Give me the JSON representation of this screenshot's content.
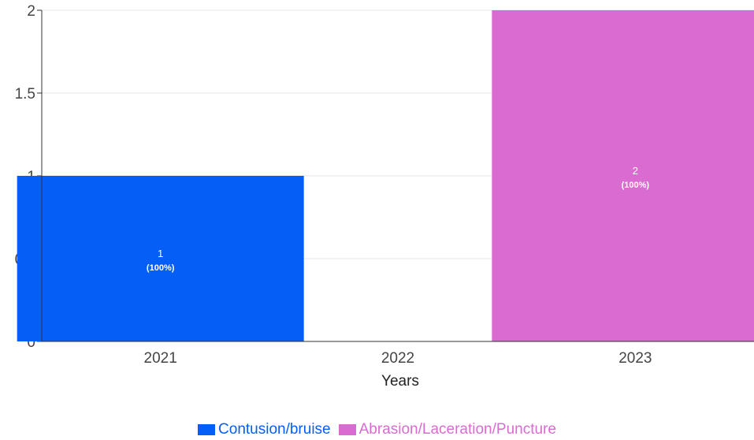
{
  "chart_data": {
    "type": "bar",
    "categories": [
      "2021",
      "2022",
      "2023"
    ],
    "series": [
      {
        "name": "Contusion/bruise",
        "color": "#055ef5",
        "values": [
          1,
          0,
          0
        ],
        "labels": [
          "1",
          "",
          ""
        ],
        "pct_labels": [
          "(100%)",
          "",
          ""
        ]
      },
      {
        "name": "Abrasion/Laceration/Puncture",
        "color": "#da6bd0",
        "values": [
          0,
          0,
          2
        ],
        "labels": [
          "",
          "",
          "2"
        ],
        "pct_labels": [
          "",
          "",
          "(100%)"
        ]
      }
    ],
    "xlabel": "Years",
    "ylabel": "",
    "ylim": [
      0,
      2
    ],
    "yticks": [
      "0",
      "0.5",
      "1",
      "1.5",
      "2"
    ],
    "grid": true,
    "legend_position": "bottom"
  }
}
